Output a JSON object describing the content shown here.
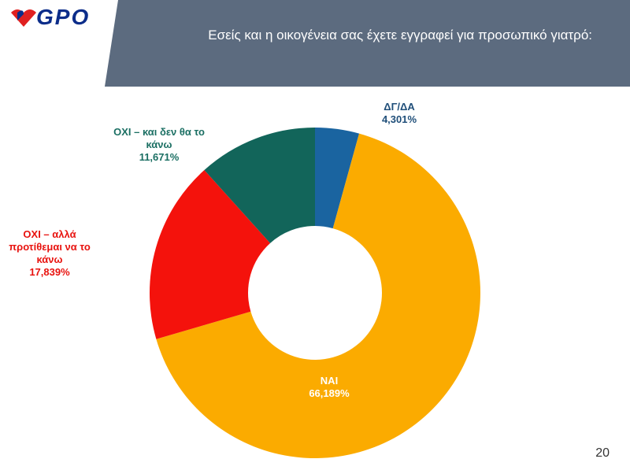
{
  "slide": {
    "logo": "GPO",
    "page_number": "20"
  },
  "chart_data": {
    "type": "donut",
    "title": "Εσείς και η οικογένεια σας έχετε εγγραφεί για προσωπικό γιατρό:",
    "categories": [
      "ΔΓ/ΔΑ",
      "ΝΑΙ",
      "ΟΧΙ – αλλά προτίθεμαι να το κάνω",
      "ΟΧΙ – και δεν θα το κάνω"
    ],
    "values": [
      4.301,
      66.189,
      17.839,
      11.671
    ],
    "value_labels": [
      "4,301%",
      "66,189%",
      "17,839%",
      "11,671%"
    ],
    "colors": [
      "#1a64a0",
      "#fbab00",
      "#f4120c",
      "#12655a"
    ]
  }
}
